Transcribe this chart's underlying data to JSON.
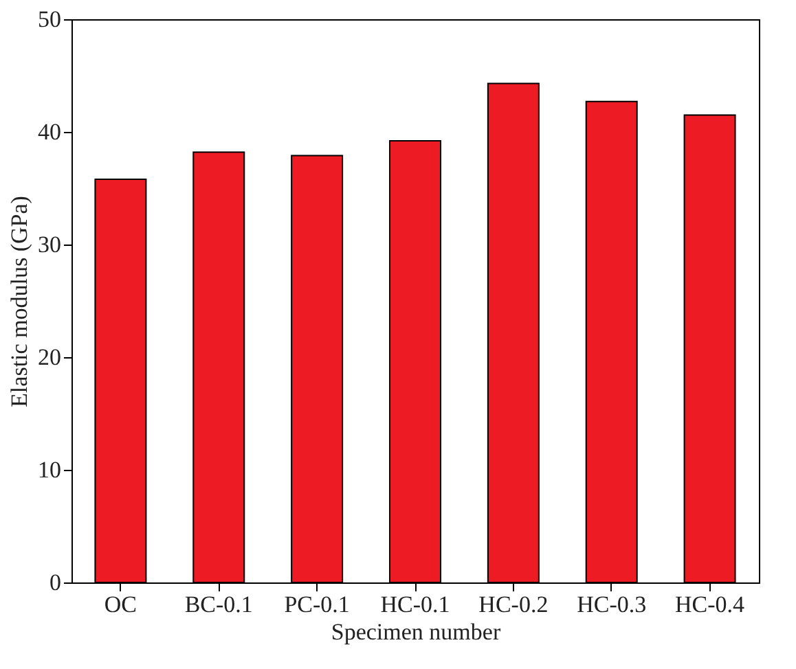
{
  "chart_data": {
    "type": "bar",
    "xlabel": "Specimen number",
    "ylabel": "Elastic modulus (GPa)",
    "categories": [
      "OC",
      "BC-0.1",
      "PC-0.1",
      "HC-0.1",
      "HC-0.2",
      "HC-0.3",
      "HC-0.4"
    ],
    "values": [
      35.8,
      38.2,
      37.9,
      39.2,
      44.3,
      42.7,
      41.5
    ],
    "color": "#ed1c24",
    "ylim": [
      0,
      50
    ],
    "yticks": [
      0,
      10,
      20,
      30,
      40,
      50
    ],
    "grid": false
  }
}
